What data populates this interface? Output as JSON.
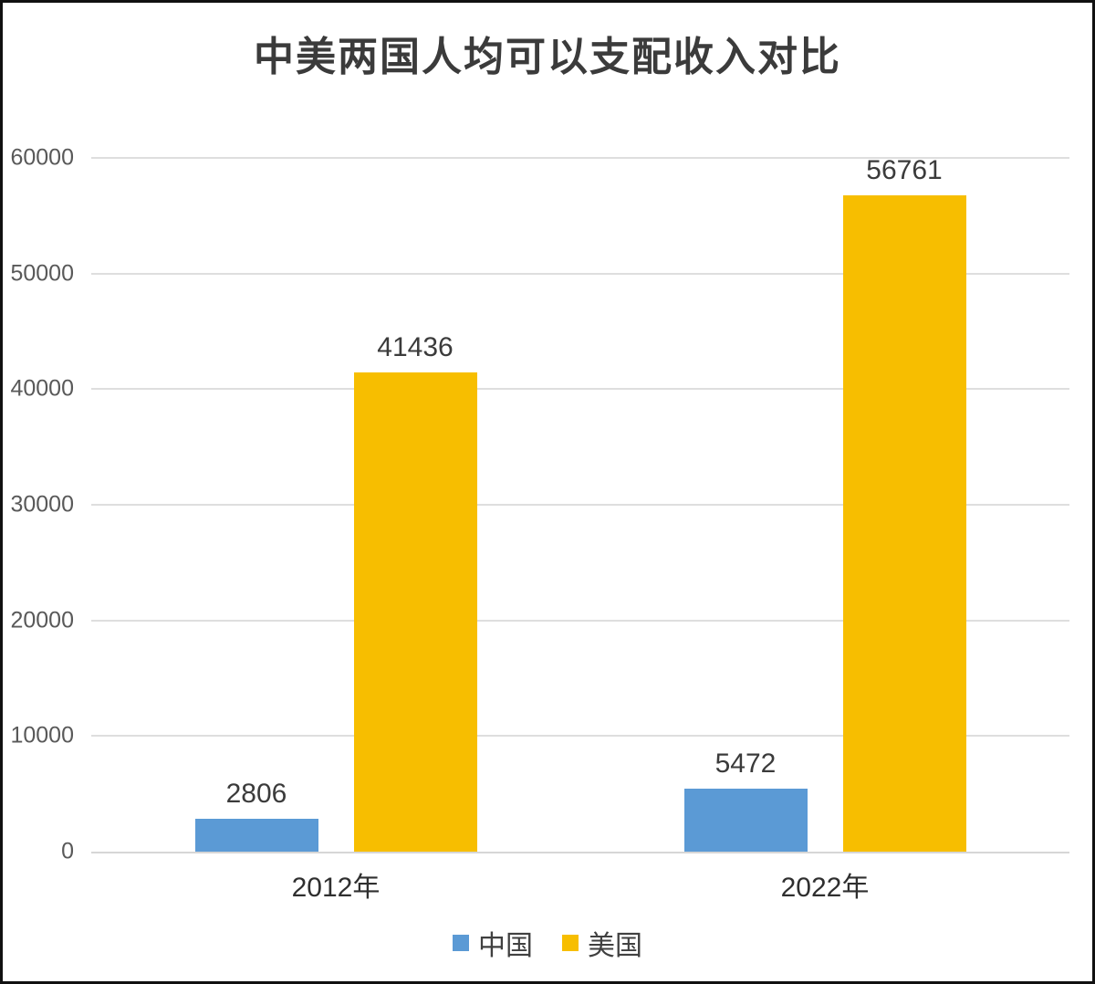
{
  "title": "中美两国人均可以支配收入对比",
  "chart_data": {
    "type": "bar",
    "title": "中美两国人均可以支配收入对比",
    "categories": [
      "2012年",
      "2022年"
    ],
    "series": [
      {
        "name": "中国",
        "values": [
          2806,
          5472
        ],
        "color": "#5B9AD5"
      },
      {
        "name": "美国",
        "values": [
          41436,
          56761
        ],
        "color": "#F7BE00"
      }
    ],
    "ylim": [
      0,
      60000
    ],
    "yticks": [
      0,
      10000,
      20000,
      30000,
      40000,
      50000,
      60000
    ],
    "grid": true,
    "data_labels": true,
    "legend_position": "bottom",
    "xlabel": "",
    "ylabel": ""
  },
  "colors": {
    "china_bar": "#5B9AD5",
    "usa_bar": "#F7BE00",
    "gridline": "#DEDEDE",
    "axis_line": "#D6D6D6",
    "title_text": "#3B3B3B",
    "tick_text": "#595959",
    "data_label_text": "#3B3B3B",
    "category_text": "#2F2F2F",
    "frame_border": "#111111",
    "background": "#FFFFFF"
  }
}
